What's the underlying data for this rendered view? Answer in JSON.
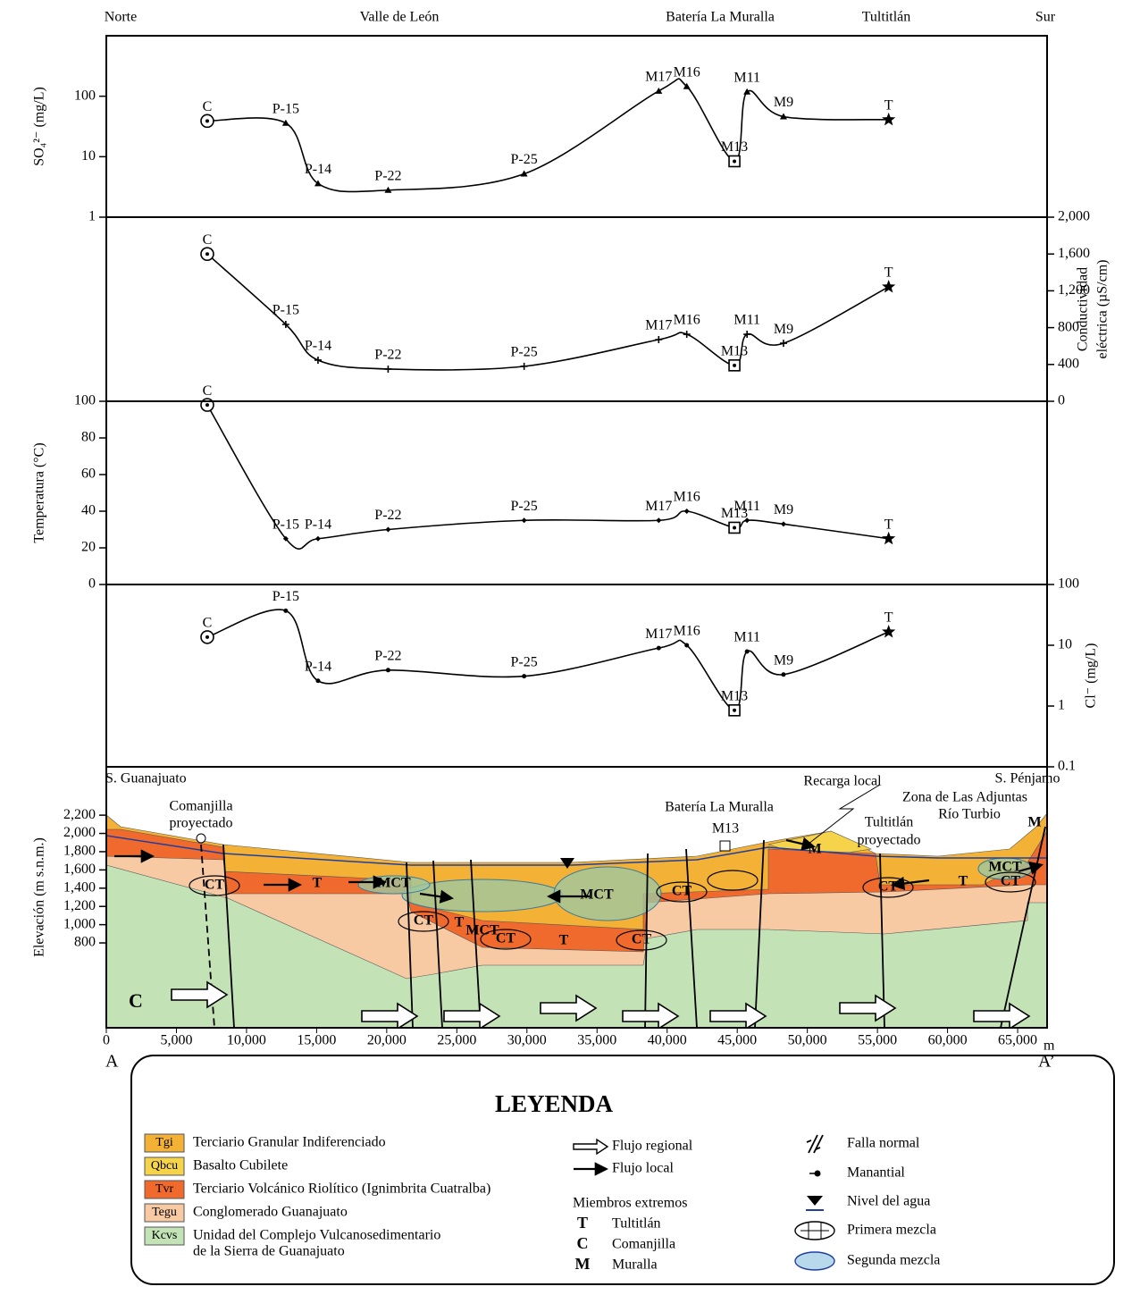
{
  "header": {
    "labels": [
      "Norte",
      "Valle de León",
      "Batería La Muralla",
      "Tultitlán",
      "Sur"
    ]
  },
  "chart_data": [
    {
      "type": "line",
      "ylabel": "SO₄²⁻ (mg/L)",
      "yaxis": "left",
      "log": true,
      "ylim": [
        1,
        1000
      ],
      "yticks": [
        1,
        10,
        100
      ],
      "xlim": [
        0,
        67100
      ],
      "x": [
        7200,
        12800,
        15100,
        20100,
        29800,
        39400,
        41400,
        44800,
        45700,
        48300,
        55800
      ],
      "values": [
        39,
        36,
        3.6,
        2.8,
        5.2,
        122,
        145,
        8.4,
        118,
        46,
        41
      ],
      "point_labels": [
        "C",
        "P-15",
        "P-14",
        "P-22",
        "P-25",
        "M17",
        "M16",
        "M13",
        "M11",
        "M9",
        "T"
      ],
      "color": "#000000",
      "marker": "triangle"
    },
    {
      "type": "line",
      "ylabel": [
        "Conductividad",
        "eléctrica (µS/cm)"
      ],
      "yaxis": "right",
      "log": false,
      "ylim": [
        0,
        2000
      ],
      "yticks": [
        {
          "value": 2000,
          "label": "2,000"
        },
        {
          "value": 1600,
          "label": "1,600"
        },
        {
          "value": 1200,
          "label": "1,200"
        },
        800,
        400,
        0
      ],
      "xlim": [
        0,
        67100
      ],
      "x": [
        7200,
        12800,
        15100,
        20100,
        29800,
        39400,
        41400,
        44800,
        45700,
        48300,
        55800
      ],
      "values": [
        1600,
        835,
        447,
        350,
        380,
        670,
        728,
        390,
        728,
        630,
        1243
      ],
      "point_labels": [
        "C",
        "P-15",
        "P-14",
        "P-22",
        "P-25",
        "M17",
        "M16",
        "M13",
        "M11",
        "M9",
        "T"
      ],
      "color": "#000000",
      "marker": "plus"
    },
    {
      "type": "line",
      "ylabel": "Temperatura (°C)",
      "yaxis": "left",
      "log": false,
      "ylim": [
        0,
        100
      ],
      "yticks": [
        0,
        20,
        40,
        60,
        80,
        100
      ],
      "xlim": [
        0,
        67100
      ],
      "x": [
        7200,
        12800,
        15100,
        20100,
        29800,
        39400,
        41400,
        44800,
        45700,
        48300,
        55800
      ],
      "values": [
        98,
        25,
        25,
        30,
        35,
        35,
        40,
        31,
        35,
        33,
        25
      ],
      "point_labels": [
        "C",
        "P-15",
        "P-14",
        "P-22",
        "P-25",
        "M17",
        "M16",
        "M13",
        "M11",
        "M9",
        "T"
      ],
      "color": "#000000",
      "marker": "diamond"
    },
    {
      "type": "line",
      "ylabel": "Cl⁻ (mg/L)",
      "yaxis": "right",
      "log": true,
      "ylim": [
        0.1,
        100
      ],
      "yticks": [
        100,
        10,
        1,
        0.1
      ],
      "xlim": [
        0,
        67100
      ],
      "x": [
        7200,
        12800,
        15100,
        20100,
        29800,
        39400,
        41400,
        44800,
        45700,
        48300,
        55800
      ],
      "values": [
        13.6,
        37,
        2.6,
        3.9,
        3.1,
        9,
        10,
        0.85,
        7.9,
        3.3,
        16.6
      ],
      "point_labels": [
        "C",
        "P-15",
        "P-14",
        "P-22",
        "P-25",
        "M17",
        "M16",
        "M13",
        "M11",
        "M9",
        "T"
      ],
      "color": "#000000",
      "marker": "dot"
    },
    {
      "type": "cross-section",
      "ylabel": "Elevación (m s.n.m.)",
      "yaxis": "left",
      "log": false,
      "ylim": [
        -130,
        2730
      ],
      "yticks": [
        800,
        {
          "value": 1000,
          "label": "1,000"
        },
        {
          "value": 1200,
          "label": "1,200"
        },
        {
          "value": 1400,
          "label": "1,400"
        },
        {
          "value": 1600,
          "label": "1,600"
        },
        {
          "value": 1800,
          "label": "1,800"
        },
        {
          "value": 2000,
          "label": "2,000"
        },
        {
          "value": 2200,
          "label": "2,200"
        }
      ],
      "xlim": [
        0,
        67100
      ],
      "xticks": [
        0,
        {
          "value": 5000,
          "label": "5,000"
        },
        {
          "value": 10000,
          "label": "10,000"
        },
        {
          "value": 15000,
          "label": "15,000"
        },
        {
          "value": 20000,
          "label": "20,000"
        },
        {
          "value": 25000,
          "label": "25,000"
        },
        {
          "value": 30000,
          "label": "30,000"
        },
        {
          "value": 35000,
          "label": "35,000"
        },
        {
          "value": 40000,
          "label": "40,000"
        },
        {
          "value": 45000,
          "label": "45,000"
        },
        {
          "value": 50000,
          "label": "50,000"
        },
        {
          "value": 55000,
          "label": "55,000"
        },
        {
          "value": 60000,
          "label": "60,000"
        },
        {
          "value": 65000,
          "label": "65,000"
        }
      ],
      "annotations": [
        "S. Guanajuato",
        "Comanjilla",
        "proyectado",
        "Batería La Muralla",
        "M13",
        "Recarga local",
        "Zona de Las Adjuntas",
        "Río Turbio",
        "Tultitlán",
        "proyectado",
        "S. Pénjamo",
        "M",
        "M",
        "T",
        "T",
        "T",
        "T",
        "MCT",
        "MCT",
        "MCT",
        "MCT",
        "CT",
        "CT",
        "CT",
        "CT",
        "CT",
        "CT",
        "CT",
        "C",
        "A",
        "A’",
        "m"
      ]
    }
  ],
  "legend": {
    "title": "LEYENDA",
    "units": [
      {
        "code": "Tgi",
        "lines": [
          "Terciario Granular Indiferenciado"
        ],
        "color": "#f3b236"
      },
      {
        "code": "Qbcu",
        "lines": [
          "Basalto Cubilete"
        ],
        "color": "#f5d34a"
      },
      {
        "code": "Tvr",
        "lines": [
          "Terciario Volcánico Riolítico (Ignimbrita Cuatralba)"
        ],
        "color": "#ef6a2c"
      },
      {
        "code": "Tegu",
        "lines": [
          "Conglomerado Guanajuato"
        ],
        "color": "#f8caa4"
      },
      {
        "code": "Kcvs",
        "lines": [
          "Unidad del Complejo Vulcanosedimentario",
          "de la Sierra de Guanajuato"
        ],
        "color": "#c3e3b6"
      }
    ],
    "flows": [
      "Flujo regional",
      "Flujo local"
    ],
    "members_title": "Miembros extremos",
    "members": [
      {
        "letter": "T",
        "name": "Tultitlán"
      },
      {
        "letter": "C",
        "name": "Comanjilla"
      },
      {
        "letter": "M",
        "name": "Muralla"
      }
    ],
    "symbols": [
      "Falla normal",
      "Manantial",
      "Nivel del agua",
      "Primera mezcla",
      "Segunda mezcla"
    ]
  }
}
